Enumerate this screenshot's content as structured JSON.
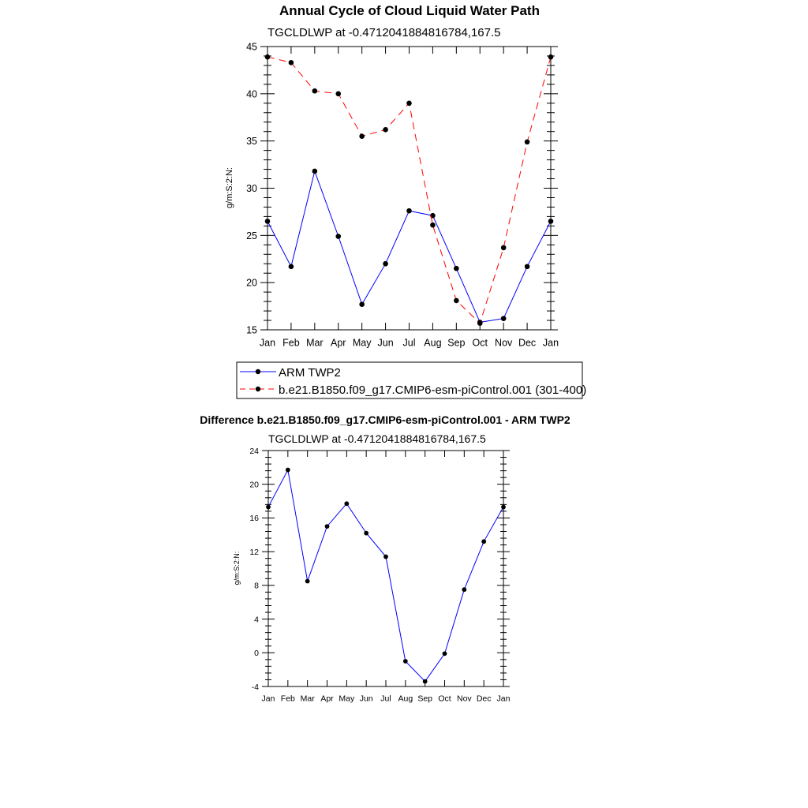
{
  "chart_data": [
    {
      "type": "line",
      "title": "Annual Cycle of Cloud Liquid Water Path",
      "subtitle": "TGCLDLWP at -0.4712041884816784,167.5",
      "xlabel": "",
      "ylabel": "g/m:S:2:N:",
      "categories": [
        "Jan",
        "Feb",
        "Mar",
        "Apr",
        "May",
        "Jun",
        "Jul",
        "Aug",
        "Sep",
        "Oct",
        "Nov",
        "Dec",
        "Jan"
      ],
      "ylim": [
        15,
        45
      ],
      "yticks": [
        15,
        20,
        25,
        30,
        35,
        40,
        45
      ],
      "series": [
        {
          "name": "ARM TWP2",
          "color": "#0000ff",
          "dash": "solid",
          "values": [
            26.5,
            21.7,
            31.8,
            24.9,
            17.7,
            22.0,
            27.6,
            27.1,
            21.5,
            15.8,
            16.2,
            21.7,
            26.5
          ]
        },
        {
          "name": "b.e21.B1850.f09_g17.CMIP6-esm-piControl.001 (301-400)",
          "color": "#ff0000",
          "dash": "dashed",
          "values": [
            43.9,
            43.3,
            40.3,
            40.0,
            35.5,
            36.2,
            39.0,
            26.1,
            18.1,
            15.7,
            23.7,
            34.9,
            43.9
          ]
        }
      ],
      "legend_position": "below"
    },
    {
      "type": "line",
      "title": "Difference b.e21.B1850.f09_g17.CMIP6-esm-piControl.001 - ARM TWP2",
      "subtitle": "TGCLDLWP at -0.4712041884816784,167.5",
      "xlabel": "",
      "ylabel": "g/m:S:2:N:",
      "categories": [
        "Jan",
        "Feb",
        "Mar",
        "Apr",
        "May",
        "Jun",
        "Jul",
        "Aug",
        "Sep",
        "Oct",
        "Nov",
        "Dec",
        "Jan"
      ],
      "ylim": [
        -4,
        24
      ],
      "yticks": [
        -4,
        0,
        4,
        8,
        12,
        16,
        20,
        24
      ],
      "series": [
        {
          "name": "Difference",
          "color": "#0000ff",
          "dash": "solid",
          "values": [
            17.3,
            21.7,
            8.5,
            15.0,
            17.7,
            14.2,
            11.4,
            -1.0,
            -3.4,
            -0.1,
            7.5,
            13.2,
            17.3
          ]
        }
      ]
    }
  ]
}
